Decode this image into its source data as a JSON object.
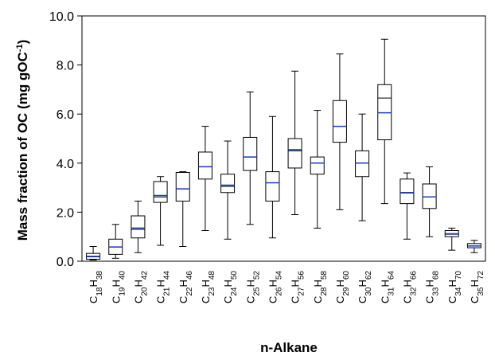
{
  "chart_data": {
    "type": "boxplot",
    "title": "",
    "xlabel": "n-Alkane",
    "ylabel": "Mass fraction of OC (mg gOC",
    "ylabel_sup": "-1",
    "ylabel_tail": ")",
    "ylim": [
      0,
      10
    ],
    "yticks": [
      {
        "value": 0,
        "label": "0.0"
      },
      {
        "value": 2,
        "label": "2.0"
      },
      {
        "value": 4,
        "label": "4.0"
      },
      {
        "value": 6,
        "label": "6.0"
      },
      {
        "value": 8,
        "label": "8.0"
      },
      {
        "value": 10,
        "label": "10.0"
      }
    ],
    "grid": false,
    "mean_color": "#1f3fbf",
    "categories": [
      {
        "c": "18",
        "h": "38"
      },
      {
        "c": "19",
        "h": "40"
      },
      {
        "c": "20",
        "h": "42"
      },
      {
        "c": "21",
        "h": "44"
      },
      {
        "c": "22",
        "h": "46"
      },
      {
        "c": "23",
        "h": "48"
      },
      {
        "c": "24",
        "h": "50"
      },
      {
        "c": "25",
        "h": "52"
      },
      {
        "c": "26",
        "h": "54"
      },
      {
        "c": "27",
        "h": "56"
      },
      {
        "c": "28",
        "h": "58"
      },
      {
        "c": "29",
        "h": "60"
      },
      {
        "c": "30",
        "h": "62"
      },
      {
        "c": "31",
        "h": "64"
      },
      {
        "c": "32",
        "h": "66"
      },
      {
        "c": "33",
        "h": "68"
      },
      {
        "c": "34",
        "h": "70"
      },
      {
        "c": "35",
        "h": "72"
      }
    ],
    "boxes": [
      {
        "min": 0.05,
        "q1": 0.08,
        "median": 0.18,
        "mean": 0.2,
        "q3": 0.32,
        "max": 0.6
      },
      {
        "min": 0.12,
        "q1": 0.28,
        "median": 0.58,
        "mean": 0.58,
        "q3": 0.9,
        "max": 1.5
      },
      {
        "min": 0.35,
        "q1": 0.95,
        "median": 1.3,
        "mean": 1.35,
        "q3": 1.85,
        "max": 2.45
      },
      {
        "min": 0.65,
        "q1": 2.4,
        "median": 2.62,
        "mean": 2.68,
        "q3": 3.25,
        "max": 3.45
      },
      {
        "min": 0.6,
        "q1": 2.45,
        "median": 2.95,
        "mean": 2.95,
        "q3": 3.62,
        "max": 3.65
      },
      {
        "min": 1.25,
        "q1": 3.35,
        "median": 3.85,
        "mean": 3.85,
        "q3": 4.45,
        "max": 5.5
      },
      {
        "min": 0.9,
        "q1": 2.8,
        "median": 3.05,
        "mean": 3.1,
        "q3": 3.55,
        "max": 4.9
      },
      {
        "min": 1.5,
        "q1": 3.7,
        "median": 4.25,
        "mean": 4.25,
        "q3": 5.05,
        "max": 6.9
      },
      {
        "min": 0.95,
        "q1": 2.45,
        "median": 3.2,
        "mean": 3.2,
        "q3": 3.65,
        "max": 5.9
      },
      {
        "min": 1.9,
        "q1": 3.8,
        "median": 4.5,
        "mean": 4.55,
        "q3": 5.0,
        "max": 7.75
      },
      {
        "min": 1.35,
        "q1": 3.55,
        "median": 4.0,
        "mean": 4.0,
        "q3": 4.25,
        "max": 6.15
      },
      {
        "min": 2.1,
        "q1": 4.85,
        "median": 5.5,
        "mean": 5.5,
        "q3": 6.55,
        "max": 8.45
      },
      {
        "min": 1.65,
        "q1": 3.45,
        "median": 4.0,
        "mean": 4.0,
        "q3": 4.5,
        "max": 6.0
      },
      {
        "min": 2.35,
        "q1": 4.95,
        "median": 6.65,
        "mean": 6.05,
        "q3": 7.2,
        "max": 9.05
      },
      {
        "min": 0.9,
        "q1": 2.35,
        "median": 2.78,
        "mean": 2.8,
        "q3": 3.35,
        "max": 3.6
      },
      {
        "min": 1.0,
        "q1": 2.15,
        "median": 2.62,
        "mean": 2.62,
        "q3": 3.15,
        "max": 3.85
      },
      {
        "min": 0.45,
        "q1": 1.0,
        "median": 1.1,
        "mean": 1.12,
        "q3": 1.25,
        "max": 1.35
      },
      {
        "min": 0.35,
        "q1": 0.55,
        "median": 0.62,
        "mean": 0.62,
        "q3": 0.72,
        "max": 0.85
      }
    ]
  }
}
